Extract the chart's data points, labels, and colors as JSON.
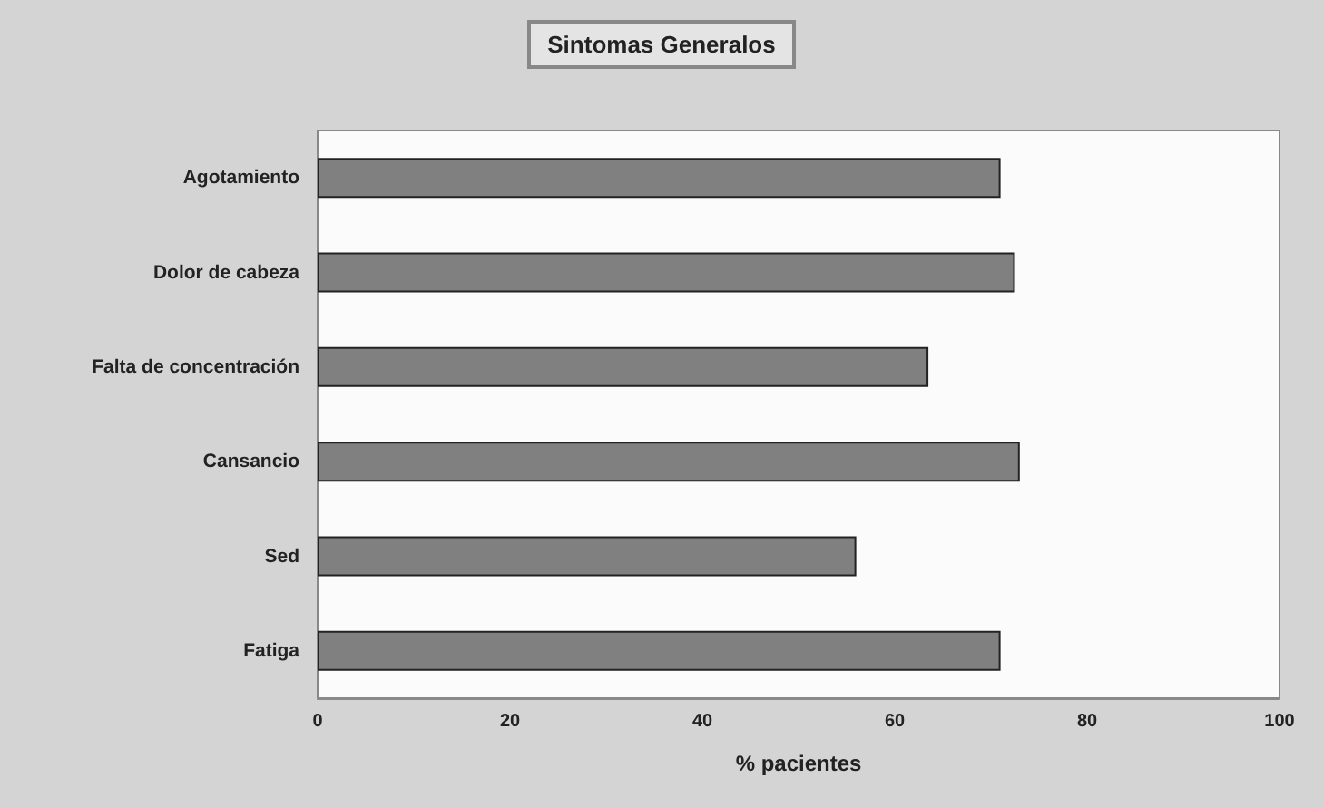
{
  "chart_data": {
    "type": "bar",
    "orientation": "horizontal",
    "title": "Sintomas Generalos",
    "xlabel": "% pacientes",
    "categories": [
      "Agotamiento",
      "Dolor de cabeza",
      "Falta de concentración",
      "Cansancio",
      "Sed",
      "Fatiga"
    ],
    "values": [
      71,
      72.5,
      63.5,
      73,
      56,
      71
    ],
    "color": "#808080",
    "xlim": [
      0,
      100
    ],
    "xticks": [
      0,
      20,
      40,
      60,
      80,
      100
    ],
    "grid": false
  }
}
